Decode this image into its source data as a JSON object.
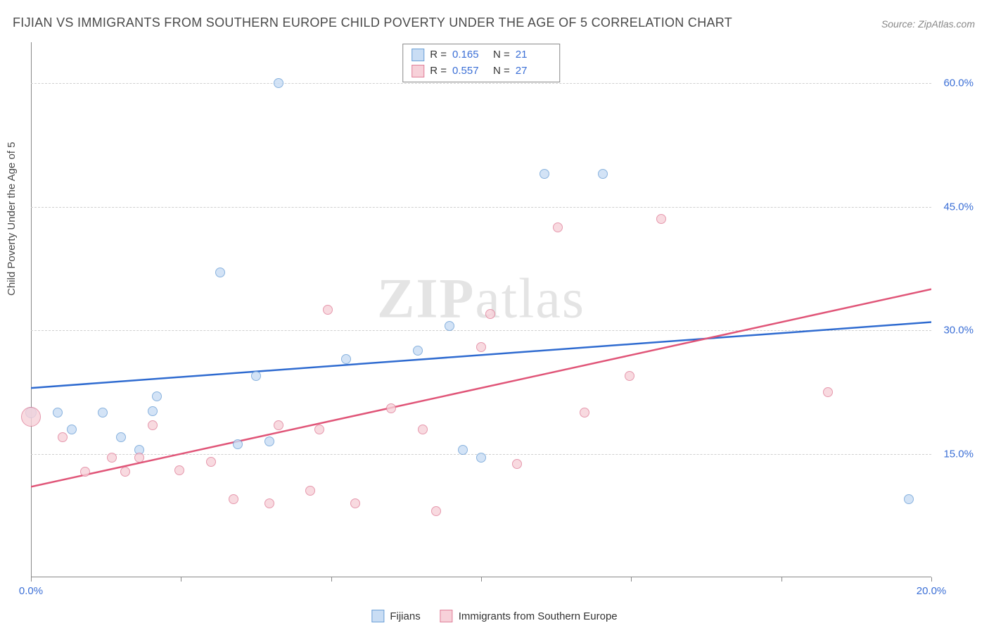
{
  "title": "FIJIAN VS IMMIGRANTS FROM SOUTHERN EUROPE CHILD POVERTY UNDER THE AGE OF 5 CORRELATION CHART",
  "source": "Source: ZipAtlas.com",
  "ylabel": "Child Poverty Under the Age of 5",
  "watermark": {
    "bold": "ZIP",
    "light": "atlas"
  },
  "chart": {
    "type": "scatter",
    "xlim": [
      0,
      20
    ],
    "ylim": [
      0,
      65
    ],
    "xticks": [
      0,
      3.33,
      6.67,
      10,
      13.33,
      16.67,
      20
    ],
    "xtick_labels": [
      "0.0%",
      "",
      "",
      "",
      "",
      "",
      "20.0%"
    ],
    "yticks": [
      15,
      30,
      45,
      60
    ],
    "ytick_labels": [
      "15.0%",
      "30.0%",
      "45.0%",
      "60.0%"
    ],
    "background_color": "#ffffff",
    "grid_color": "#d0d0d0",
    "series": [
      {
        "name": "Fijians",
        "fill": "#c9ddf4",
        "stroke": "#6b9fd6",
        "line_color": "#2f6bd0",
        "line_width": 2.5,
        "R": "0.165",
        "N": "21",
        "points": [
          {
            "x": 0.0,
            "y": 20,
            "r": 8
          },
          {
            "x": 0.6,
            "y": 20,
            "r": 7
          },
          {
            "x": 0.9,
            "y": 18,
            "r": 7
          },
          {
            "x": 1.6,
            "y": 20,
            "r": 7
          },
          {
            "x": 2.0,
            "y": 17,
            "r": 7
          },
          {
            "x": 2.4,
            "y": 15.5,
            "r": 7
          },
          {
            "x": 2.7,
            "y": 20.2,
            "r": 7
          },
          {
            "x": 2.8,
            "y": 22,
            "r": 7
          },
          {
            "x": 4.2,
            "y": 37,
            "r": 7
          },
          {
            "x": 4.6,
            "y": 16.2,
            "r": 7
          },
          {
            "x": 5.0,
            "y": 24.5,
            "r": 7
          },
          {
            "x": 5.3,
            "y": 16.5,
            "r": 7
          },
          {
            "x": 5.5,
            "y": 60,
            "r": 7
          },
          {
            "x": 7.0,
            "y": 26.5,
            "r": 7
          },
          {
            "x": 8.6,
            "y": 27.5,
            "r": 7
          },
          {
            "x": 9.3,
            "y": 30.5,
            "r": 7
          },
          {
            "x": 9.6,
            "y": 15.5,
            "r": 7
          },
          {
            "x": 10.0,
            "y": 14.5,
            "r": 7
          },
          {
            "x": 11.4,
            "y": 49,
            "r": 7
          },
          {
            "x": 12.7,
            "y": 49,
            "r": 7
          },
          {
            "x": 19.5,
            "y": 9.5,
            "r": 7
          }
        ],
        "trend": {
          "y0": 23,
          "y1": 31
        }
      },
      {
        "name": "Immigrants from Southern Europe",
        "fill": "#f7d1d9",
        "stroke": "#e07f99",
        "line_color": "#e05578",
        "line_width": 2.5,
        "R": "0.557",
        "N": "27",
        "points": [
          {
            "x": 0.0,
            "y": 19.5,
            "r": 14
          },
          {
            "x": 0.7,
            "y": 17,
            "r": 7
          },
          {
            "x": 1.2,
            "y": 12.8,
            "r": 7
          },
          {
            "x": 1.8,
            "y": 14.5,
            "r": 7
          },
          {
            "x": 2.1,
            "y": 12.8,
            "r": 7
          },
          {
            "x": 2.4,
            "y": 14.5,
            "r": 7
          },
          {
            "x": 2.7,
            "y": 18.5,
            "r": 7
          },
          {
            "x": 3.3,
            "y": 13,
            "r": 7
          },
          {
            "x": 4.0,
            "y": 14,
            "r": 7
          },
          {
            "x": 4.5,
            "y": 9.5,
            "r": 7
          },
          {
            "x": 5.3,
            "y": 9,
            "r": 7
          },
          {
            "x": 5.5,
            "y": 18.5,
            "r": 7
          },
          {
            "x": 6.2,
            "y": 10.5,
            "r": 7
          },
          {
            "x": 6.4,
            "y": 18,
            "r": 7
          },
          {
            "x": 6.6,
            "y": 32.5,
            "r": 7
          },
          {
            "x": 7.2,
            "y": 9,
            "r": 7
          },
          {
            "x": 8.0,
            "y": 20.5,
            "r": 7
          },
          {
            "x": 8.7,
            "y": 18,
            "r": 7
          },
          {
            "x": 9.0,
            "y": 8,
            "r": 7
          },
          {
            "x": 10.0,
            "y": 28,
            "r": 7
          },
          {
            "x": 10.2,
            "y": 32,
            "r": 7
          },
          {
            "x": 10.8,
            "y": 13.8,
            "r": 7
          },
          {
            "x": 11.7,
            "y": 42.5,
            "r": 7
          },
          {
            "x": 12.3,
            "y": 20,
            "r": 7
          },
          {
            "x": 13.3,
            "y": 24.5,
            "r": 7
          },
          {
            "x": 14.0,
            "y": 43.5,
            "r": 7
          },
          {
            "x": 17.7,
            "y": 22.5,
            "r": 7
          }
        ],
        "trend": {
          "y0": 11,
          "y1": 35
        }
      }
    ]
  },
  "stats_labels": {
    "R": "R  =",
    "N": "N  ="
  }
}
